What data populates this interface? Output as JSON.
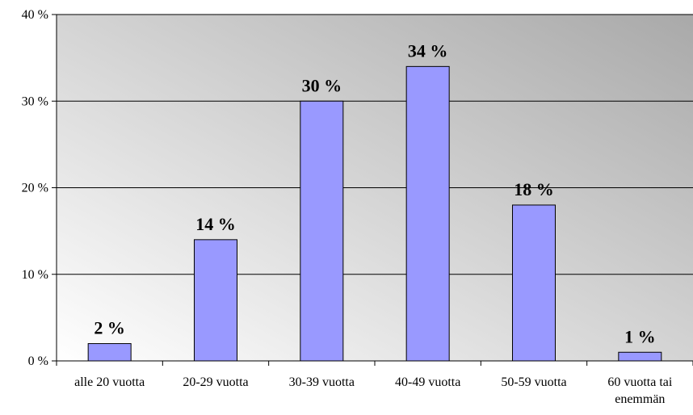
{
  "chart_data": {
    "type": "bar",
    "title": "",
    "xlabel": "",
    "ylabel": "",
    "categories": [
      [
        "alle 20 vuotta"
      ],
      [
        "20-29 vuotta"
      ],
      [
        "30-39 vuotta"
      ],
      [
        "40-49 vuotta"
      ],
      [
        "50-59 vuotta"
      ],
      [
        "60 vuotta tai",
        "enemmän"
      ]
    ],
    "values": [
      2,
      14,
      30,
      34,
      18,
      1
    ],
    "data_labels": [
      "2 %",
      "14 %",
      "30 %",
      "34 %",
      "18 %",
      "1 %"
    ],
    "ylim": [
      0,
      40
    ],
    "yticks": [
      0,
      10,
      20,
      30,
      40
    ],
    "ytick_labels": [
      "0 %",
      "10 %",
      "20 %",
      "30 %",
      "40 %"
    ],
    "grid": true,
    "legend": "none",
    "bar_color": "#9999ff",
    "plot_background": "gradient gray"
  }
}
